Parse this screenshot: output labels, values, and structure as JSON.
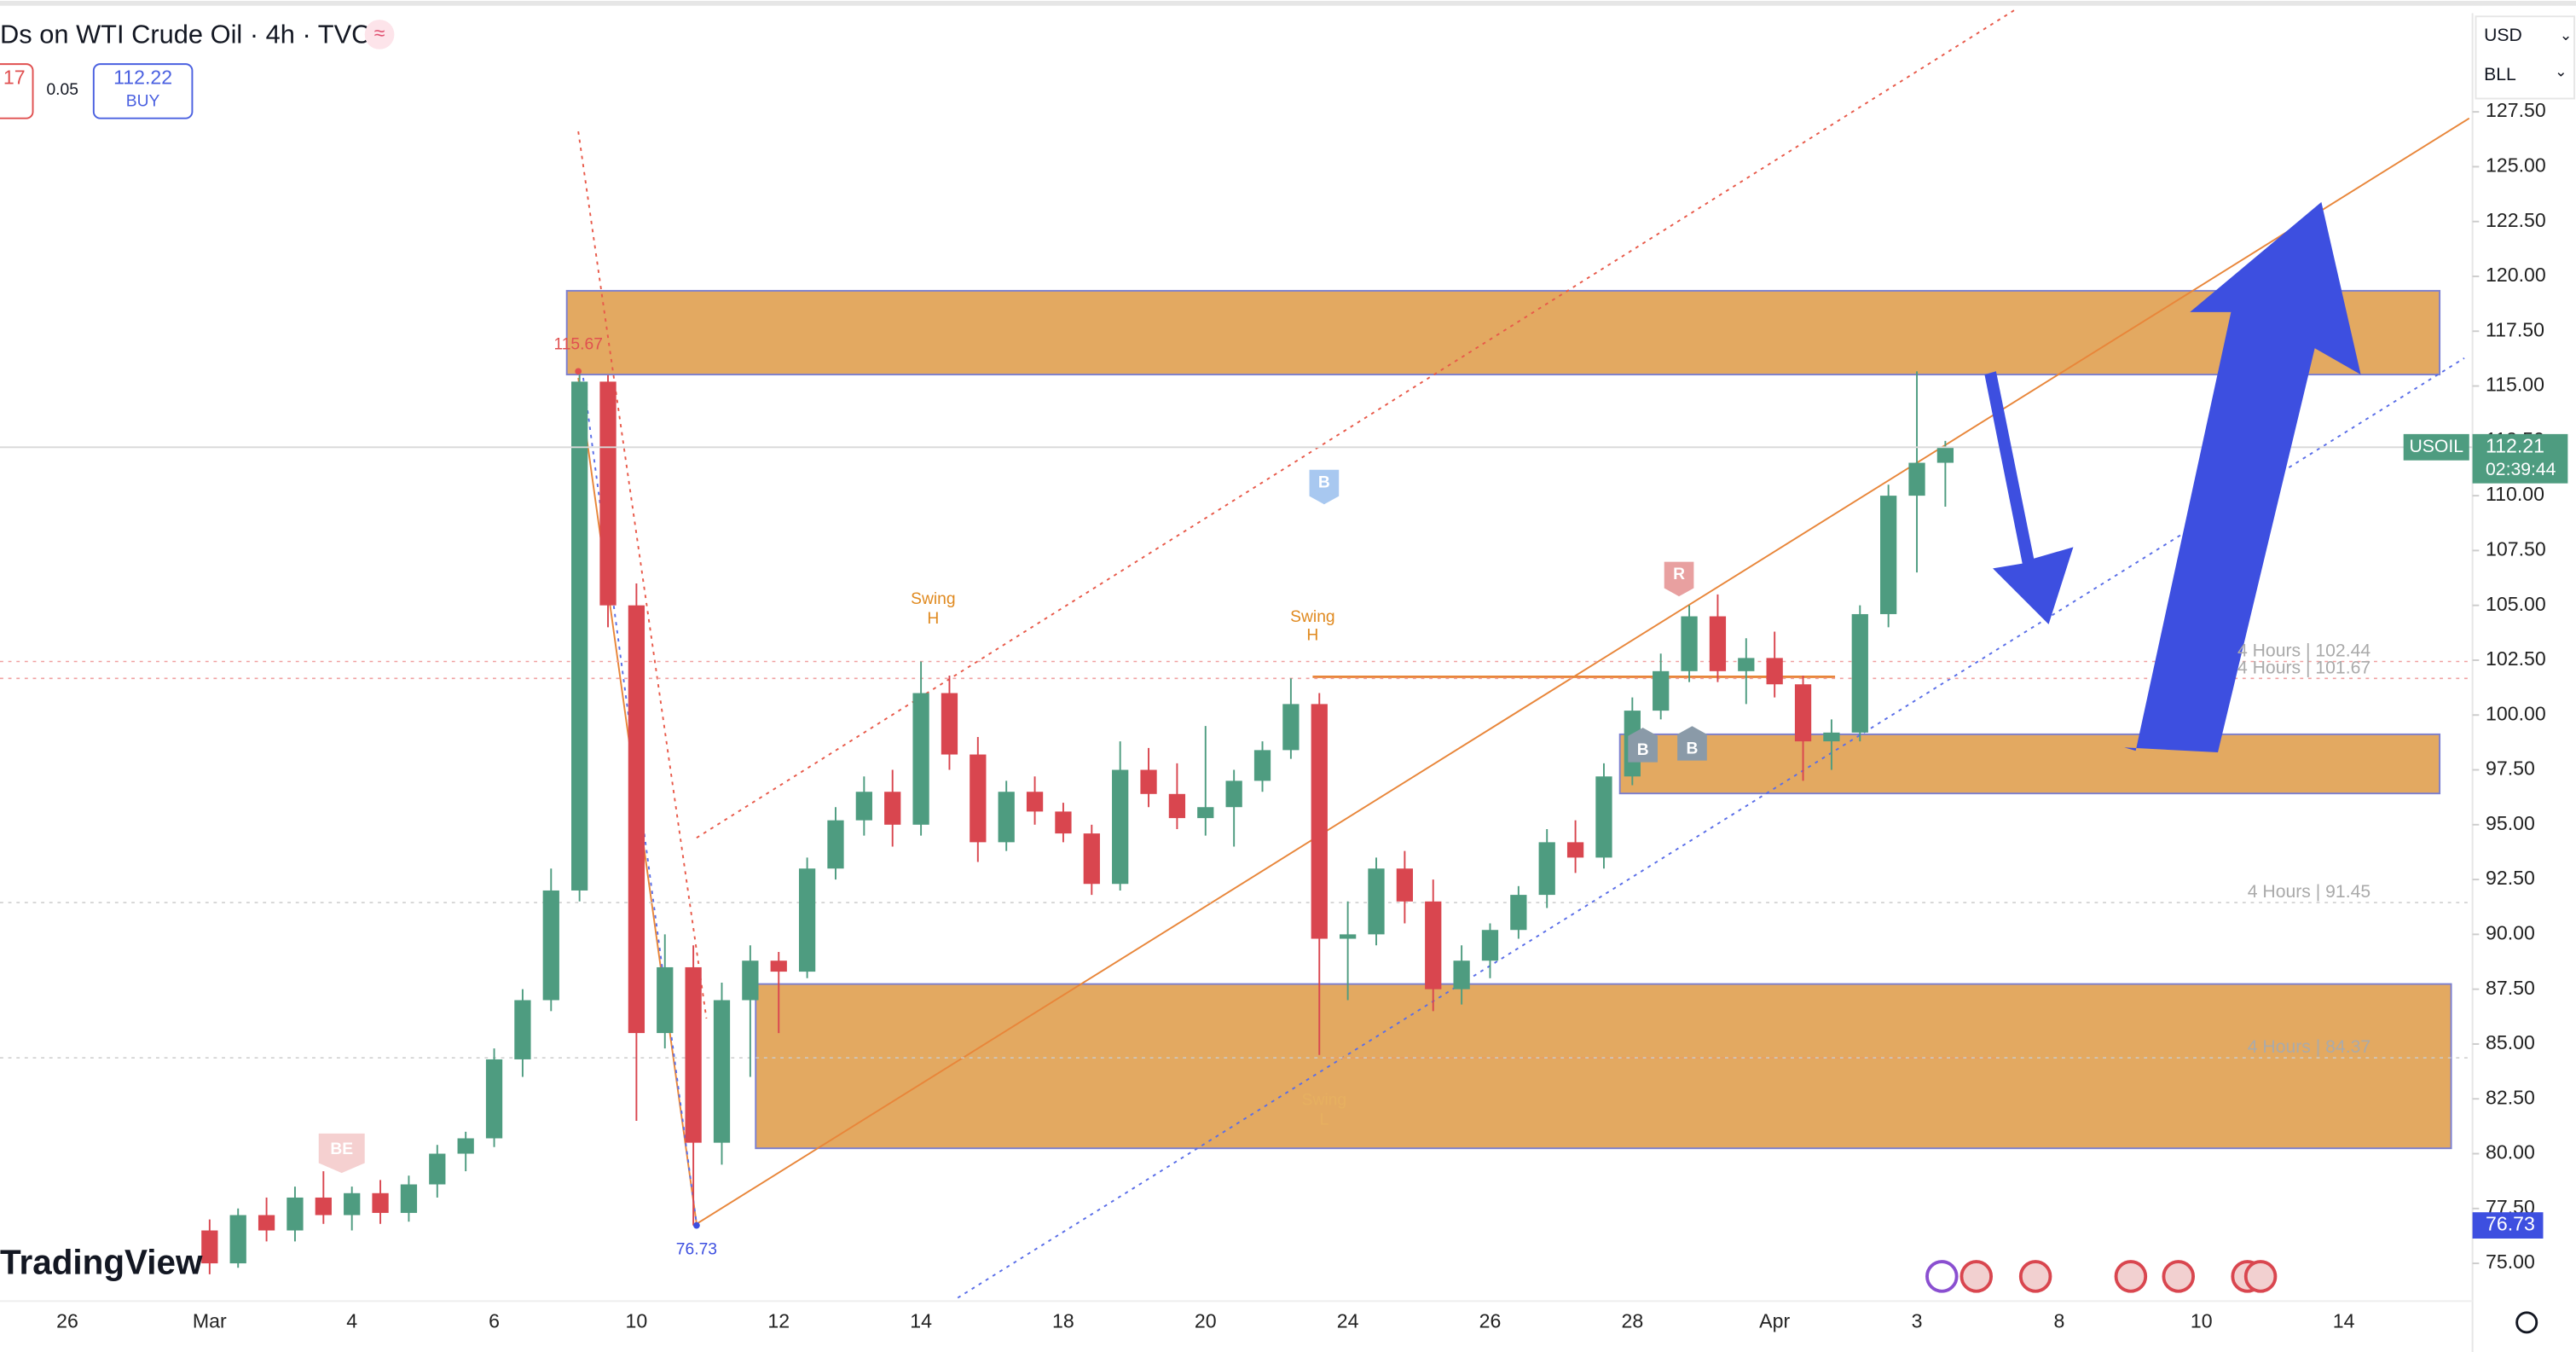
{
  "header": {
    "title": "Ds on WTI Crude Oil · 4h · TVC",
    "title_icon": "≈",
    "change": "17",
    "spread": "0.05",
    "buy_price": "112.22",
    "buy_label": "BUY",
    "currency": "USD",
    "unit": "BLL",
    "logo": "TradingView"
  },
  "chart_data": {
    "type": "candlestick",
    "up_color": "#4e9c80",
    "down_color": "#d9464f",
    "categories": [
      "26",
      null,
      null,
      null,
      null,
      "Mar",
      null,
      null,
      null,
      null,
      "4",
      null,
      null,
      null,
      null,
      "6",
      null,
      null,
      null,
      null,
      "10",
      null,
      null,
      null,
      null,
      "12",
      null,
      null,
      null,
      null,
      "14",
      null,
      null,
      null,
      null,
      "18",
      null,
      null,
      null,
      null,
      "20",
      null,
      null,
      null,
      null,
      "24",
      null,
      null,
      null,
      null,
      "26",
      null,
      null,
      null,
      null,
      "28",
      null,
      null,
      null,
      null,
      "Apr",
      null,
      null,
      null,
      null,
      "3",
      null,
      null,
      null,
      null,
      "8",
      null,
      null,
      null,
      null,
      "10",
      null,
      null,
      null,
      null,
      "14",
      null,
      null
    ],
    "open": [
      null,
      null,
      null,
      null,
      null,
      76.5,
      75.0,
      77.2,
      76.5,
      78.0,
      77.2,
      78.2,
      77.3,
      78.6,
      80.0,
      80.7,
      84.3,
      87.0,
      92.0,
      115.2,
      105.0,
      85.5,
      88.5,
      80.5,
      87.0,
      88.8,
      88.3,
      93.0,
      95.2,
      96.5,
      95.0,
      101.0,
      98.2,
      94.2,
      96.5,
      95.6,
      94.6,
      92.3,
      97.5,
      96.4,
      95.3,
      95.8,
      97.0,
      98.4,
      100.5,
      89.8,
      90.0,
      93.0,
      91.5,
      87.5,
      88.8,
      90.2,
      91.8,
      94.2,
      93.5,
      97.2,
      100.2,
      102.0,
      104.5,
      102.0,
      102.6,
      101.4,
      98.8,
      99.2,
      104.6,
      110.0,
      111.5,
      null,
      null,
      null,
      null,
      null,
      null,
      null,
      null,
      null,
      null,
      null,
      null,
      null,
      null,
      null,
      null
    ],
    "high": [
      null,
      null,
      null,
      null,
      null,
      77.0,
      77.5,
      78.0,
      78.5,
      79.2,
      78.5,
      78.8,
      79.0,
      80.4,
      81.0,
      84.8,
      87.5,
      93.0,
      115.67,
      115.5,
      106.0,
      90.0,
      89.5,
      87.8,
      89.5,
      89.2,
      93.5,
      95.8,
      97.2,
      97.5,
      102.44,
      101.8,
      99.0,
      97.0,
      97.2,
      96.0,
      95.0,
      98.8,
      98.5,
      97.8,
      99.5,
      97.5,
      98.8,
      101.67,
      101.0,
      91.5,
      93.5,
      93.8,
      92.5,
      89.5,
      90.5,
      92.2,
      94.8,
      95.2,
      97.8,
      100.8,
      102.8,
      105.0,
      105.5,
      103.5,
      103.8,
      101.8,
      99.8,
      105.0,
      110.5,
      115.67,
      112.5,
      null,
      null,
      null,
      null,
      null,
      null,
      null,
      null,
      null,
      null,
      null,
      null,
      null,
      null,
      null,
      null
    ],
    "low": [
      null,
      null,
      null,
      null,
      null,
      74.5,
      74.8,
      76.0,
      76.0,
      76.8,
      76.5,
      76.8,
      76.9,
      78.0,
      79.2,
      80.3,
      83.5,
      86.5,
      91.5,
      104.0,
      81.5,
      84.8,
      76.73,
      79.5,
      83.5,
      85.5,
      88.0,
      92.5,
      94.5,
      94.0,
      94.5,
      97.5,
      93.3,
      93.8,
      95.0,
      94.2,
      91.8,
      92.0,
      95.8,
      94.8,
      94.5,
      94.0,
      96.5,
      98.0,
      84.5,
      87.0,
      89.5,
      90.5,
      86.5,
      86.8,
      88.0,
      89.8,
      91.2,
      92.8,
      93.0,
      96.8,
      99.8,
      101.5,
      101.5,
      100.5,
      100.8,
      97.0,
      97.5,
      98.8,
      104.0,
      106.5,
      109.5,
      null,
      null,
      null,
      null,
      null,
      null,
      null,
      null,
      null,
      null,
      null,
      null,
      null,
      null,
      null,
      null
    ],
    "close": [
      null,
      null,
      null,
      null,
      null,
      75.0,
      77.2,
      76.5,
      78.0,
      77.2,
      78.2,
      77.3,
      78.6,
      80.0,
      80.7,
      84.3,
      87.0,
      92.0,
      115.2,
      105.0,
      85.5,
      88.5,
      80.5,
      87.0,
      88.8,
      88.3,
      93.0,
      95.2,
      96.5,
      95.0,
      101.0,
      98.2,
      94.2,
      96.5,
      95.6,
      94.6,
      92.3,
      97.5,
      96.4,
      95.3,
      95.8,
      97.0,
      98.4,
      100.5,
      89.8,
      90.0,
      93.0,
      91.5,
      87.5,
      88.8,
      90.2,
      91.8,
      94.2,
      93.5,
      97.2,
      100.2,
      102.0,
      104.5,
      102.0,
      102.6,
      101.4,
      98.8,
      99.2,
      104.6,
      110.0,
      111.5,
      112.21,
      null,
      null,
      null,
      null,
      null,
      null,
      null,
      null,
      null,
      null,
      null,
      null,
      null,
      null,
      null,
      null
    ],
    "ylim": [
      73.43,
      132.6
    ],
    "yticks": [
      {
        "value": 75,
        "label": "75.00"
      },
      {
        "value": 77.5,
        "label": "77.50"
      },
      {
        "value": 80,
        "label": "80.00"
      },
      {
        "value": 82.5,
        "label": "82.50"
      },
      {
        "value": 85,
        "label": "85.00"
      },
      {
        "value": 87.5,
        "label": "87.50"
      },
      {
        "value": 90,
        "label": "90.00"
      },
      {
        "value": 92.5,
        "label": "92.50"
      },
      {
        "value": 95,
        "label": "95.00"
      },
      {
        "value": 97.5,
        "label": "97.50"
      },
      {
        "value": 100,
        "label": "100.00"
      },
      {
        "value": 102.5,
        "label": "102.50"
      },
      {
        "value": 105,
        "label": "105.00"
      },
      {
        "value": 107.5,
        "label": "107.50"
      },
      {
        "value": 110,
        "label": "110.00"
      },
      {
        "value": 112.5,
        "label": "112.50"
      },
      {
        "value": 115,
        "label": "115.00"
      },
      {
        "value": 117.5,
        "label": "117.50"
      },
      {
        "value": 120,
        "label": "120.00"
      },
      {
        "value": 122.5,
        "label": "122.50"
      },
      {
        "value": 125,
        "label": "125.00"
      },
      {
        "value": 127.5,
        "label": "127.50"
      }
    ],
    "levels": [
      {
        "label": "4 Hours | 102.44",
        "value": 102.44,
        "color": "#f0a0a0"
      },
      {
        "label": "4 Hours | 101.67",
        "value": 101.67,
        "color": "#f0a0a0"
      },
      {
        "label": "4 Hours | 91.45",
        "value": 91.45,
        "color": "#cccccc"
      },
      {
        "label": "4 Hours | 84.37",
        "value": 84.37,
        "color": "#cccccc"
      }
    ],
    "last_price": {
      "symbol": "USOIL",
      "value": 112.21,
      "countdown": "02:39:44",
      "color": "#4e9c80"
    },
    "low_mark": {
      "value": 76.73,
      "color": "#3d4fe0"
    },
    "high_mark": 115.67,
    "swing_labels": [
      [
        "Swing",
        "H"
      ],
      [
        "Swing",
        "H"
      ],
      [
        "Swing",
        "L"
      ]
    ],
    "badges": [
      "B",
      "R",
      "B",
      "B",
      "BE"
    ]
  }
}
